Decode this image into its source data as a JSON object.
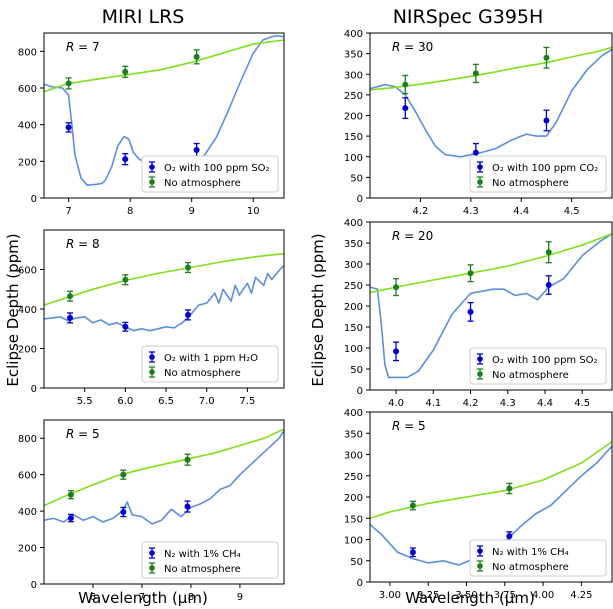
{
  "figure": {
    "col_titles": [
      "MIRI LRS",
      "NIRSpec G395H"
    ],
    "shared_ylabel": "Eclipse Depth (ppm)",
    "shared_xlabel_parts": [
      "Wavelength (",
      "μ",
      "m)"
    ]
  },
  "colors": {
    "model": "#5b8fdc",
    "no_atm": "#7fe01a",
    "pt_model": "#0000cc",
    "pt_noatm": "#1e7d1e"
  },
  "chart_data": [
    {
      "type": "line",
      "panel": "miri-1",
      "title": "MIRI LRS",
      "annotation": "R = 7",
      "xlim": [
        6.6,
        10.5
      ],
      "ylim": [
        0,
        900
      ],
      "xticks": [
        7,
        8,
        9,
        10
      ],
      "xticklabels": [
        "7",
        "8",
        "9",
        "10"
      ],
      "yticks": [
        0,
        200,
        400,
        600,
        800
      ],
      "legend": [
        "O₂ with 100 ppm SO₂",
        "No atmosphere"
      ],
      "series": [
        {
          "name": "model",
          "x": [
            6.6,
            6.75,
            6.9,
            7.0,
            7.05,
            7.1,
            7.2,
            7.3,
            7.45,
            7.55,
            7.6,
            7.7,
            7.8,
            7.9,
            7.98,
            8.05,
            8.15,
            8.3,
            8.5,
            8.75,
            9.0,
            9.2,
            9.4,
            9.6,
            9.8,
            10.0,
            10.15,
            10.3,
            10.4,
            10.5
          ],
          "y": [
            620,
            605,
            600,
            560,
            410,
            240,
            110,
            70,
            75,
            80,
            100,
            170,
            285,
            335,
            320,
            250,
            210,
            190,
            200,
            210,
            200,
            230,
            330,
            480,
            640,
            790,
            860,
            880,
            885,
            880
          ]
        },
        {
          "name": "no_atm",
          "x": [
            6.6,
            7.0,
            7.5,
            8.0,
            8.5,
            9.0,
            9.5,
            10.0,
            10.5
          ],
          "y": [
            580,
            625,
            650,
            675,
            700,
            740,
            790,
            840,
            862
          ]
        }
      ],
      "points": [
        {
          "series": "model",
          "x": 7.0,
          "y": 385,
          "err": 25
        },
        {
          "series": "model",
          "x": 7.92,
          "y": 212,
          "err": 30
        },
        {
          "series": "model",
          "x": 9.08,
          "y": 262,
          "err": 35
        },
        {
          "series": "no_atm",
          "x": 7.0,
          "y": 625,
          "err": 30
        },
        {
          "series": "no_atm",
          "x": 7.92,
          "y": 688,
          "err": 30
        },
        {
          "series": "no_atm",
          "x": 9.08,
          "y": 770,
          "err": 38
        }
      ]
    },
    {
      "type": "line",
      "panel": "nirspec-1",
      "title": "NIRSpec G395H",
      "annotation": "R = 30",
      "xlim": [
        4.1,
        4.58
      ],
      "ylim": [
        0,
        400
      ],
      "xticks": [
        4.2,
        4.3,
        4.4,
        4.5
      ],
      "xticklabels": [
        "4.2",
        "4.3",
        "4.4",
        "4.5"
      ],
      "yticks": [
        0,
        50,
        100,
        150,
        200,
        250,
        300,
        350,
        400
      ],
      "legend": [
        "O₂ with 100 ppm CO₂",
        "No atmosphere"
      ],
      "series": [
        {
          "name": "model",
          "x": [
            4.1,
            4.13,
            4.15,
            4.17,
            4.19,
            4.21,
            4.23,
            4.25,
            4.28,
            4.3,
            4.32,
            4.35,
            4.38,
            4.41,
            4.43,
            4.45,
            4.47,
            4.5,
            4.53,
            4.56,
            4.58
          ],
          "y": [
            265,
            275,
            270,
            250,
            210,
            165,
            125,
            105,
            100,
            105,
            110,
            120,
            140,
            155,
            150,
            150,
            185,
            260,
            310,
            345,
            360
          ]
        },
        {
          "name": "no_atm",
          "x": [
            4.1,
            4.15,
            4.2,
            4.25,
            4.3,
            4.35,
            4.4,
            4.45,
            4.5,
            4.55,
            4.58
          ],
          "y": [
            262,
            268,
            276,
            285,
            295,
            306,
            318,
            328,
            342,
            355,
            365
          ]
        }
      ],
      "points": [
        {
          "series": "model",
          "x": 4.17,
          "y": 218,
          "err": 25
        },
        {
          "series": "model",
          "x": 4.31,
          "y": 110,
          "err": 22
        },
        {
          "series": "model",
          "x": 4.45,
          "y": 188,
          "err": 25
        },
        {
          "series": "no_atm",
          "x": 4.17,
          "y": 275,
          "err": 22
        },
        {
          "series": "no_atm",
          "x": 4.31,
          "y": 302,
          "err": 22
        },
        {
          "series": "no_atm",
          "x": 4.45,
          "y": 340,
          "err": 25
        }
      ]
    },
    {
      "type": "line",
      "panel": "miri-2",
      "annotation": "R = 8",
      "xlim": [
        5.0,
        7.95
      ],
      "ylim": [
        0,
        800
      ],
      "xticks": [
        5.5,
        6.0,
        6.5,
        7.0,
        7.5
      ],
      "xticklabels": [
        "5.5",
        "6.0",
        "6.5",
        "7.0",
        "7.5"
      ],
      "yticks": [
        0,
        200,
        400,
        600
      ],
      "legend": [
        "O₂ with 1 ppm H₂O",
        "No atmosphere"
      ],
      "series": [
        {
          "name": "model",
          "x": [
            5.0,
            5.1,
            5.2,
            5.3,
            5.4,
            5.5,
            5.6,
            5.7,
            5.8,
            5.9,
            6.0,
            6.1,
            6.2,
            6.3,
            6.4,
            6.5,
            6.6,
            6.7,
            6.8,
            6.9,
            7.0,
            7.1,
            7.15,
            7.2,
            7.3,
            7.35,
            7.4,
            7.5,
            7.55,
            7.6,
            7.7,
            7.75,
            7.8,
            7.9,
            7.95
          ],
          "y": [
            350,
            355,
            360,
            340,
            355,
            360,
            330,
            345,
            320,
            330,
            310,
            290,
            300,
            290,
            300,
            310,
            305,
            330,
            370,
            420,
            430,
            480,
            430,
            500,
            440,
            520,
            470,
            530,
            480,
            560,
            520,
            580,
            550,
            600,
            620
          ]
        },
        {
          "name": "no_atm",
          "x": [
            5.0,
            5.3,
            5.6,
            6.0,
            6.4,
            6.8,
            7.2,
            7.6,
            7.95
          ],
          "y": [
            420,
            460,
            500,
            545,
            580,
            610,
            640,
            665,
            680
          ]
        }
      ],
      "points": [
        {
          "series": "model",
          "x": 5.32,
          "y": 355,
          "err": 25
        },
        {
          "series": "model",
          "x": 6.0,
          "y": 310,
          "err": 22
        },
        {
          "series": "model",
          "x": 6.77,
          "y": 370,
          "err": 25
        },
        {
          "series": "no_atm",
          "x": 5.32,
          "y": 465,
          "err": 25
        },
        {
          "series": "no_atm",
          "x": 6.0,
          "y": 548,
          "err": 25
        },
        {
          "series": "no_atm",
          "x": 6.77,
          "y": 610,
          "err": 25
        }
      ]
    },
    {
      "type": "line",
      "panel": "nirspec-2",
      "annotation": "R = 20",
      "xlim": [
        3.93,
        4.58
      ],
      "ylim": [
        0,
        400
      ],
      "xticks": [
        4.0,
        4.1,
        4.2,
        4.3,
        4.4,
        4.5
      ],
      "xticklabels": [
        "4.0",
        "4.1",
        "4.2",
        "4.3",
        "4.4",
        "4.5"
      ],
      "yticks": [
        0,
        50,
        100,
        150,
        200,
        250,
        300,
        350,
        400
      ],
      "legend": [
        "O₂ with 100 ppm SO₂",
        "No atmosphere"
      ],
      "series": [
        {
          "name": "model",
          "x": [
            3.93,
            3.95,
            3.96,
            3.97,
            3.98,
            4.0,
            4.03,
            4.06,
            4.1,
            4.15,
            4.2,
            4.23,
            4.26,
            4.29,
            4.32,
            4.35,
            4.38,
            4.41,
            4.45,
            4.5,
            4.55,
            4.58
          ],
          "y": [
            245,
            240,
            160,
            60,
            30,
            30,
            30,
            45,
            95,
            180,
            230,
            235,
            240,
            240,
            225,
            230,
            215,
            245,
            265,
            320,
            355,
            372
          ]
        },
        {
          "name": "no_atm",
          "x": [
            3.93,
            4.0,
            4.1,
            4.2,
            4.3,
            4.4,
            4.5,
            4.58
          ],
          "y": [
            232,
            245,
            262,
            278,
            295,
            318,
            345,
            372
          ]
        }
      ],
      "points": [
        {
          "series": "model",
          "x": 4.0,
          "y": 92,
          "err": 22
        },
        {
          "series": "model",
          "x": 4.2,
          "y": 186,
          "err": 22
        },
        {
          "series": "model",
          "x": 4.41,
          "y": 250,
          "err": 22
        },
        {
          "series": "no_atm",
          "x": 4.0,
          "y": 245,
          "err": 20
        },
        {
          "series": "no_atm",
          "x": 4.2,
          "y": 278,
          "err": 20
        },
        {
          "series": "no_atm",
          "x": 4.41,
          "y": 328,
          "err": 25
        }
      ]
    },
    {
      "type": "line",
      "panel": "miri-3",
      "annotation": "R = 5",
      "xlim": [
        5.0,
        9.9
      ],
      "ylim": [
        0,
        900
      ],
      "xticks": [
        6,
        7,
        8,
        9
      ],
      "xticklabels": [
        "6",
        "7",
        "8",
        "9"
      ],
      "yticks": [
        0,
        200,
        400,
        600,
        800
      ],
      "legend": [
        "N₂ with 1% CH₄",
        "No atmosphere"
      ],
      "series": [
        {
          "name": "model",
          "x": [
            5.0,
            5.2,
            5.4,
            5.6,
            5.8,
            6.0,
            6.2,
            6.4,
            6.6,
            6.7,
            6.8,
            7.0,
            7.2,
            7.4,
            7.6,
            7.8,
            8.0,
            8.2,
            8.4,
            8.6,
            8.8,
            9.0,
            9.2,
            9.4,
            9.6,
            9.8,
            9.9
          ],
          "y": [
            350,
            360,
            340,
            380,
            350,
            370,
            340,
            360,
            400,
            450,
            380,
            370,
            330,
            350,
            410,
            370,
            420,
            440,
            470,
            520,
            540,
            600,
            650,
            700,
            750,
            800,
            840
          ]
        },
        {
          "name": "no_atm",
          "x": [
            5.0,
            5.5,
            6.0,
            6.5,
            7.0,
            7.5,
            8.0,
            8.5,
            9.0,
            9.5,
            9.9
          ],
          "y": [
            430,
            490,
            545,
            595,
            630,
            660,
            690,
            720,
            760,
            800,
            850
          ]
        }
      ],
      "points": [
        {
          "series": "model",
          "x": 5.55,
          "y": 362,
          "err": 20
        },
        {
          "series": "model",
          "x": 6.62,
          "y": 395,
          "err": 25
        },
        {
          "series": "model",
          "x": 7.93,
          "y": 425,
          "err": 30
        },
        {
          "series": "no_atm",
          "x": 5.55,
          "y": 490,
          "err": 22
        },
        {
          "series": "no_atm",
          "x": 6.62,
          "y": 600,
          "err": 25
        },
        {
          "series": "no_atm",
          "x": 7.93,
          "y": 682,
          "err": 30
        }
      ]
    },
    {
      "type": "line",
      "panel": "nirspec-3",
      "annotation": "R = 5",
      "xlim": [
        2.87,
        4.45
      ],
      "ylim": [
        0,
        400
      ],
      "xticks": [
        3.0,
        3.25,
        3.5,
        3.75,
        4.0,
        4.25
      ],
      "xticklabels": [
        "3.00",
        "3.25",
        "3.50",
        "3.75",
        "4.00",
        "4.25"
      ],
      "yticks": [
        0,
        50,
        100,
        150,
        200,
        250,
        300,
        350,
        400
      ],
      "legend": [
        "N₂ with 1% CH₄",
        "No atmosphere"
      ],
      "series": [
        {
          "name": "model",
          "x": [
            2.87,
            2.95,
            3.05,
            3.15,
            3.25,
            3.35,
            3.45,
            3.55,
            3.65,
            3.75,
            3.85,
            3.95,
            4.05,
            4.15,
            4.25,
            4.35,
            4.45
          ],
          "y": [
            135,
            110,
            70,
            55,
            45,
            50,
            40,
            55,
            75,
            95,
            130,
            160,
            180,
            215,
            250,
            280,
            320
          ]
        },
        {
          "name": "no_atm",
          "x": [
            2.87,
            3.0,
            3.25,
            3.5,
            3.75,
            4.0,
            4.25,
            4.45
          ],
          "y": [
            150,
            165,
            185,
            200,
            215,
            240,
            280,
            330
          ]
        }
      ],
      "points": [
        {
          "series": "model",
          "x": 3.15,
          "y": 70,
          "err": 10
        },
        {
          "series": "model",
          "x": 3.78,
          "y": 108,
          "err": 10
        },
        {
          "series": "no_atm",
          "x": 3.15,
          "y": 180,
          "err": 10
        },
        {
          "series": "no_atm",
          "x": 3.78,
          "y": 220,
          "err": 12
        }
      ]
    }
  ]
}
